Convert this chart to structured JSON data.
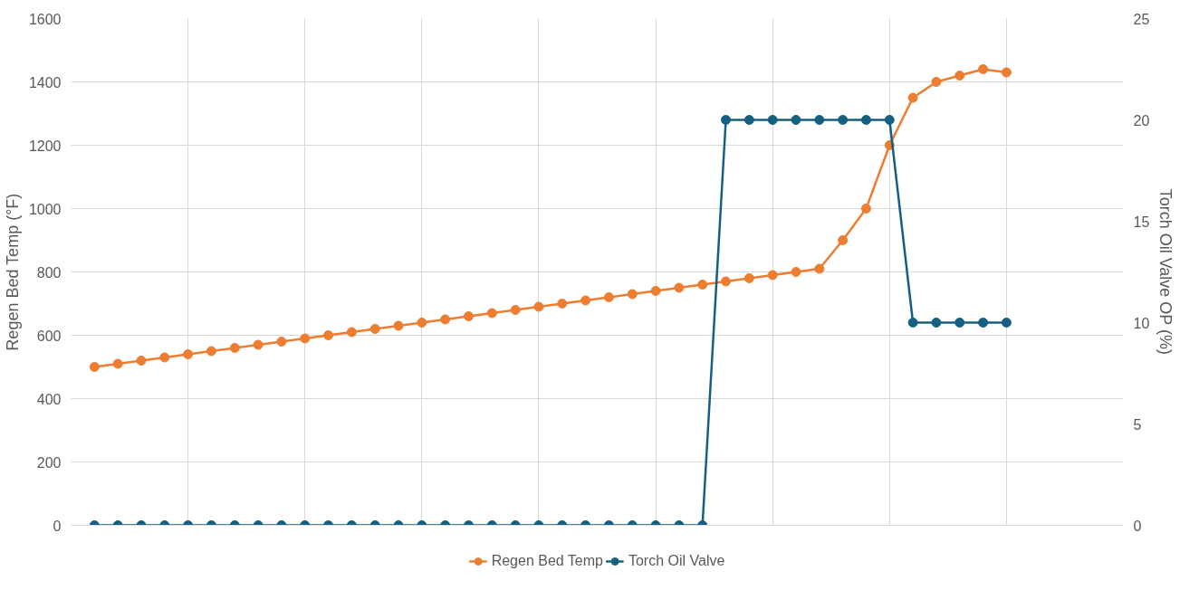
{
  "chart_data": {
    "type": "line",
    "ylabel": "Regen Bed Temp (°F)",
    "y2label": "Torch Oil Valve OP (%)",
    "categories": [
      null,
      null,
      null,
      null,
      null,
      null,
      null,
      null,
      null,
      null,
      null,
      null,
      null,
      null,
      null,
      null,
      null,
      null,
      null,
      null,
      null,
      null,
      null,
      null,
      null,
      null,
      null,
      null,
      null,
      null,
      null,
      null,
      null,
      null,
      null,
      null,
      null,
      null,
      null,
      null
    ],
    "ylim": [
      0,
      1600
    ],
    "yticks": [
      0,
      200,
      400,
      600,
      800,
      1000,
      1200,
      1400,
      1600
    ],
    "y2lim": [
      0,
      25
    ],
    "y2ticks": [
      0,
      5,
      10,
      15,
      20,
      25
    ],
    "series": [
      {
        "name": "Regen Bed Temp",
        "color": "#ed7d31",
        "values": [
          500,
          510,
          520,
          530,
          540,
          550,
          560,
          570,
          580,
          590,
          600,
          610,
          620,
          630,
          640,
          650,
          660,
          670,
          680,
          690,
          700,
          710,
          720,
          730,
          740,
          750,
          760,
          770,
          780,
          790,
          800,
          810,
          900,
          1000,
          1200,
          1350,
          1400,
          1420,
          1440,
          1430
        ]
      },
      {
        "name": "Torch Oil Valve",
        "color": "#156082",
        "axis": "y2",
        "values": [
          0,
          0,
          0,
          0,
          0,
          0,
          0,
          0,
          0,
          0,
          0,
          0,
          0,
          0,
          0,
          0,
          0,
          0,
          0,
          0,
          0,
          0,
          0,
          0,
          0,
          0,
          0,
          20,
          20,
          20,
          20,
          20,
          20,
          20,
          20,
          10,
          10,
          10,
          10,
          10
        ]
      }
    ],
    "grid": true,
    "legend": "bottom",
    "marker": "circle",
    "line_style": "solid",
    "tick_labels": "y"
  }
}
